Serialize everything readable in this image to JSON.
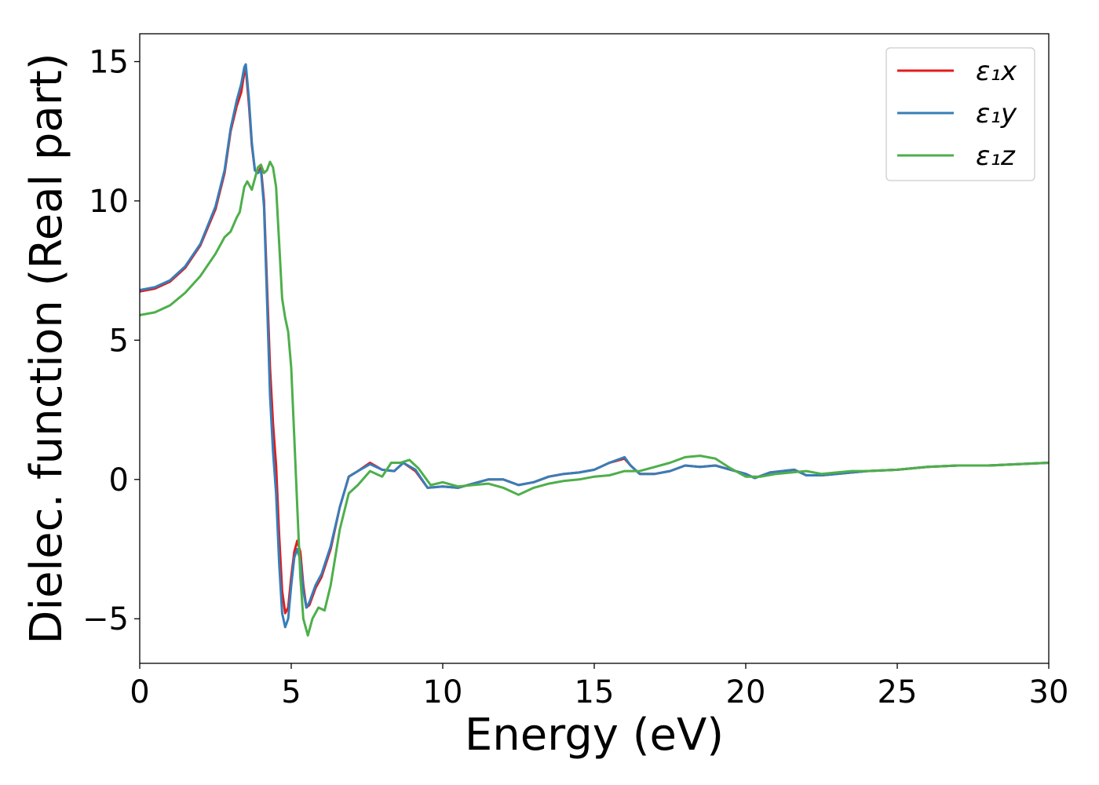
{
  "chart_data": {
    "type": "line",
    "title": "",
    "xlabel": "Energy (eV)",
    "ylabel": "Dielec. function (Real part)",
    "xlim": [
      0,
      30
    ],
    "ylim": [
      -6.6,
      16
    ],
    "xticks": [
      0,
      5,
      10,
      15,
      20,
      25,
      30
    ],
    "xtick_labels": [
      "0",
      "5",
      "10",
      "15",
      "20",
      "25",
      "30"
    ],
    "yticks": [
      -5,
      0,
      5,
      10,
      15
    ],
    "ytick_labels": [
      "−5",
      "0",
      "5",
      "10",
      "15"
    ],
    "grid": false,
    "legend_position": "top-right",
    "series": [
      {
        "name": "ε₁x",
        "color": "#e41a1c",
        "points": [
          [
            0,
            6.75
          ],
          [
            0.5,
            6.85
          ],
          [
            1,
            7.1
          ],
          [
            1.5,
            7.6
          ],
          [
            2,
            8.4
          ],
          [
            2.5,
            9.7
          ],
          [
            2.8,
            11.0
          ],
          [
            3.0,
            12.5
          ],
          [
            3.2,
            13.4
          ],
          [
            3.35,
            13.9
          ],
          [
            3.45,
            14.6
          ],
          [
            3.5,
            14.75
          ],
          [
            3.6,
            13.5
          ],
          [
            3.7,
            12.0
          ],
          [
            3.8,
            11.1
          ],
          [
            3.9,
            11.0
          ],
          [
            4.0,
            11.2
          ],
          [
            4.1,
            10.0
          ],
          [
            4.2,
            7.0
          ],
          [
            4.3,
            4.0
          ],
          [
            4.4,
            2.0
          ],
          [
            4.5,
            0.5
          ],
          [
            4.6,
            -2.0
          ],
          [
            4.7,
            -4.0
          ],
          [
            4.8,
            -4.8
          ],
          [
            4.9,
            -4.6
          ],
          [
            5.0,
            -3.5
          ],
          [
            5.1,
            -2.6
          ],
          [
            5.2,
            -2.2
          ],
          [
            5.3,
            -2.6
          ],
          [
            5.4,
            -3.8
          ],
          [
            5.5,
            -4.6
          ],
          [
            5.6,
            -4.5
          ],
          [
            5.8,
            -3.9
          ],
          [
            6.0,
            -3.5
          ],
          [
            6.3,
            -2.5
          ],
          [
            6.6,
            -1.0
          ],
          [
            6.9,
            0.1
          ],
          [
            7.2,
            0.3
          ],
          [
            7.6,
            0.6
          ],
          [
            8.0,
            0.35
          ],
          [
            8.4,
            0.3
          ],
          [
            8.7,
            0.6
          ],
          [
            9.1,
            0.3
          ],
          [
            9.5,
            -0.3
          ],
          [
            10.0,
            -0.25
          ],
          [
            10.5,
            -0.3
          ],
          [
            11.0,
            -0.15
          ],
          [
            11.5,
            0.0
          ],
          [
            12.0,
            0.0
          ],
          [
            12.5,
            -0.2
          ],
          [
            13.0,
            -0.1
          ],
          [
            13.5,
            0.1
          ],
          [
            14.0,
            0.2
          ],
          [
            14.5,
            0.25
          ],
          [
            15.0,
            0.35
          ],
          [
            15.5,
            0.6
          ],
          [
            16.0,
            0.75
          ],
          [
            16.2,
            0.5
          ],
          [
            16.5,
            0.2
          ],
          [
            17.0,
            0.2
          ],
          [
            17.5,
            0.3
          ],
          [
            18.0,
            0.5
          ],
          [
            18.5,
            0.45
          ],
          [
            19.0,
            0.5
          ],
          [
            19.5,
            0.35
          ],
          [
            20.0,
            0.2
          ],
          [
            20.3,
            0.05
          ],
          [
            20.8,
            0.25
          ],
          [
            21.2,
            0.3
          ],
          [
            21.6,
            0.35
          ],
          [
            22.0,
            0.15
          ],
          [
            22.5,
            0.15
          ],
          [
            23.0,
            0.2
          ],
          [
            23.5,
            0.25
          ],
          [
            24.0,
            0.3
          ],
          [
            25.0,
            0.35
          ],
          [
            26.0,
            0.45
          ],
          [
            27.0,
            0.5
          ],
          [
            28.0,
            0.5
          ],
          [
            29.0,
            0.55
          ],
          [
            30.0,
            0.6
          ]
        ]
      },
      {
        "name": "ε₁y",
        "color": "#377eb8",
        "points": [
          [
            0,
            6.8
          ],
          [
            0.5,
            6.9
          ],
          [
            1,
            7.15
          ],
          [
            1.5,
            7.65
          ],
          [
            2,
            8.45
          ],
          [
            2.5,
            9.8
          ],
          [
            2.8,
            11.1
          ],
          [
            3.0,
            12.6
          ],
          [
            3.2,
            13.6
          ],
          [
            3.35,
            14.2
          ],
          [
            3.45,
            14.8
          ],
          [
            3.5,
            14.9
          ],
          [
            3.6,
            13.7
          ],
          [
            3.7,
            12.1
          ],
          [
            3.8,
            11.1
          ],
          [
            3.9,
            11.0
          ],
          [
            4.0,
            11.1
          ],
          [
            4.1,
            9.8
          ],
          [
            4.2,
            6.5
          ],
          [
            4.3,
            3.0
          ],
          [
            4.4,
            1.0
          ],
          [
            4.5,
            -0.5
          ],
          [
            4.6,
            -3.0
          ],
          [
            4.7,
            -4.8
          ],
          [
            4.8,
            -5.3
          ],
          [
            4.9,
            -5.0
          ],
          [
            5.0,
            -3.8
          ],
          [
            5.1,
            -2.8
          ],
          [
            5.2,
            -2.5
          ],
          [
            5.3,
            -2.9
          ],
          [
            5.4,
            -4.0
          ],
          [
            5.5,
            -4.6
          ],
          [
            5.6,
            -4.4
          ],
          [
            5.8,
            -3.8
          ],
          [
            6.0,
            -3.4
          ],
          [
            6.3,
            -2.4
          ],
          [
            6.6,
            -1.0
          ],
          [
            6.9,
            0.1
          ],
          [
            7.2,
            0.3
          ],
          [
            7.6,
            0.55
          ],
          [
            8.0,
            0.35
          ],
          [
            8.4,
            0.3
          ],
          [
            8.7,
            0.6
          ],
          [
            9.1,
            0.35
          ],
          [
            9.5,
            -0.3
          ],
          [
            10.0,
            -0.25
          ],
          [
            10.5,
            -0.3
          ],
          [
            11.0,
            -0.15
          ],
          [
            11.5,
            0.0
          ],
          [
            12.0,
            0.0
          ],
          [
            12.5,
            -0.2
          ],
          [
            13.0,
            -0.1
          ],
          [
            13.5,
            0.1
          ],
          [
            14.0,
            0.2
          ],
          [
            14.5,
            0.25
          ],
          [
            15.0,
            0.35
          ],
          [
            15.5,
            0.6
          ],
          [
            16.0,
            0.8
          ],
          [
            16.2,
            0.5
          ],
          [
            16.5,
            0.2
          ],
          [
            17.0,
            0.2
          ],
          [
            17.5,
            0.3
          ],
          [
            18.0,
            0.5
          ],
          [
            18.5,
            0.45
          ],
          [
            19.0,
            0.5
          ],
          [
            19.5,
            0.35
          ],
          [
            20.0,
            0.2
          ],
          [
            20.3,
            0.05
          ],
          [
            20.8,
            0.25
          ],
          [
            21.2,
            0.3
          ],
          [
            21.6,
            0.35
          ],
          [
            22.0,
            0.15
          ],
          [
            22.5,
            0.15
          ],
          [
            23.0,
            0.2
          ],
          [
            23.5,
            0.25
          ],
          [
            24.0,
            0.3
          ],
          [
            25.0,
            0.35
          ],
          [
            26.0,
            0.45
          ],
          [
            27.0,
            0.5
          ],
          [
            28.0,
            0.5
          ],
          [
            29.0,
            0.55
          ],
          [
            30.0,
            0.6
          ]
        ]
      },
      {
        "name": "ε₁z",
        "color": "#4daf4a",
        "points": [
          [
            0,
            5.9
          ],
          [
            0.5,
            6.0
          ],
          [
            1,
            6.25
          ],
          [
            1.5,
            6.7
          ],
          [
            2,
            7.3
          ],
          [
            2.5,
            8.1
          ],
          [
            2.8,
            8.7
          ],
          [
            3.0,
            8.9
          ],
          [
            3.2,
            9.4
          ],
          [
            3.3,
            9.6
          ],
          [
            3.45,
            10.5
          ],
          [
            3.55,
            10.7
          ],
          [
            3.7,
            10.4
          ],
          [
            3.8,
            10.8
          ],
          [
            3.9,
            11.2
          ],
          [
            4.0,
            11.3
          ],
          [
            4.1,
            11.0
          ],
          [
            4.2,
            11.1
          ],
          [
            4.3,
            11.4
          ],
          [
            4.4,
            11.2
          ],
          [
            4.5,
            10.5
          ],
          [
            4.6,
            8.5
          ],
          [
            4.7,
            6.5
          ],
          [
            4.8,
            5.8
          ],
          [
            4.9,
            5.3
          ],
          [
            5.0,
            4.0
          ],
          [
            5.1,
            1.5
          ],
          [
            5.2,
            -1.0
          ],
          [
            5.3,
            -3.5
          ],
          [
            5.4,
            -5.0
          ],
          [
            5.55,
            -5.6
          ],
          [
            5.7,
            -5.0
          ],
          [
            5.9,
            -4.6
          ],
          [
            6.1,
            -4.7
          ],
          [
            6.3,
            -3.8
          ],
          [
            6.6,
            -1.8
          ],
          [
            6.9,
            -0.5
          ],
          [
            7.2,
            -0.2
          ],
          [
            7.6,
            0.3
          ],
          [
            8.0,
            0.1
          ],
          [
            8.3,
            0.6
          ],
          [
            8.6,
            0.6
          ],
          [
            8.9,
            0.7
          ],
          [
            9.2,
            0.4
          ],
          [
            9.6,
            -0.2
          ],
          [
            10.0,
            -0.1
          ],
          [
            10.5,
            -0.25
          ],
          [
            11.0,
            -0.2
          ],
          [
            11.5,
            -0.15
          ],
          [
            12.0,
            -0.3
          ],
          [
            12.5,
            -0.55
          ],
          [
            13.0,
            -0.3
          ],
          [
            13.5,
            -0.15
          ],
          [
            14.0,
            -0.05
          ],
          [
            14.5,
            0.0
          ],
          [
            15.0,
            0.1
          ],
          [
            15.5,
            0.15
          ],
          [
            16.0,
            0.3
          ],
          [
            16.5,
            0.3
          ],
          [
            17.0,
            0.45
          ],
          [
            17.5,
            0.6
          ],
          [
            18.0,
            0.8
          ],
          [
            18.5,
            0.85
          ],
          [
            19.0,
            0.75
          ],
          [
            19.5,
            0.4
          ],
          [
            20.0,
            0.1
          ],
          [
            20.5,
            0.1
          ],
          [
            21.0,
            0.2
          ],
          [
            21.5,
            0.25
          ],
          [
            22.0,
            0.3
          ],
          [
            22.5,
            0.2
          ],
          [
            23.0,
            0.25
          ],
          [
            23.5,
            0.3
          ],
          [
            24.0,
            0.3
          ],
          [
            25.0,
            0.35
          ],
          [
            26.0,
            0.45
          ],
          [
            27.0,
            0.5
          ],
          [
            28.0,
            0.5
          ],
          [
            29.0,
            0.55
          ],
          [
            30.0,
            0.6
          ]
        ]
      }
    ]
  }
}
